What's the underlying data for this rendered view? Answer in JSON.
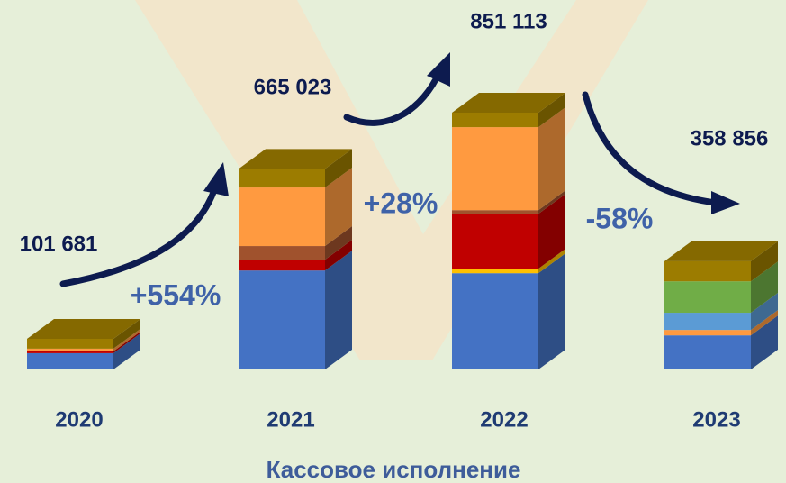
{
  "chart_data": {
    "type": "bar3d_stacked",
    "title": "Кассовое исполнение",
    "categories": [
      "2020",
      "2021",
      "2022",
      "2023"
    ],
    "values": [
      101681,
      665023,
      851113,
      358856
    ],
    "value_labels": [
      "101 681",
      "665 023",
      "851 113",
      "358 856"
    ],
    "annotations": [
      "+554%",
      "+28%",
      "-58%"
    ],
    "series": [
      {
        "color": "#4472c4",
        "values": [
          54000,
          328000,
          319000,
          113000
        ]
      },
      {
        "color": "#ffc000",
        "values": [
          null,
          null,
          15000,
          null
        ]
      },
      {
        "color": "#c00000",
        "values": [
          6000,
          36000,
          182000,
          null
        ]
      },
      {
        "color": "#a0522d",
        "values": [
          null,
          45000,
          12000,
          null
        ]
      },
      {
        "color": "#ff9a40",
        "values": [
          9000,
          194000,
          275000,
          18000
        ]
      },
      {
        "color": "#5b9bd5",
        "values": [
          null,
          null,
          null,
          57000
        ]
      },
      {
        "color": "#70ad47",
        "values": [
          null,
          null,
          null,
          104000
        ]
      },
      {
        "color": "#9c7c00",
        "values": [
          32681,
          62023,
          48113,
          66856
        ]
      }
    ]
  }
}
